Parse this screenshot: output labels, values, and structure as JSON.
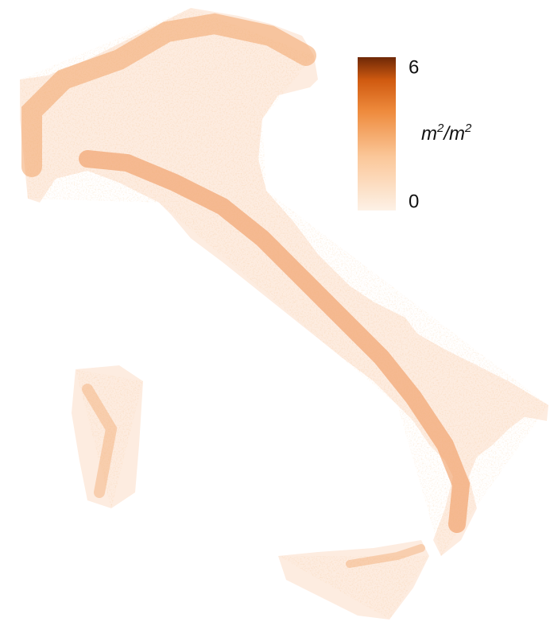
{
  "colorbar": {
    "min": 0,
    "max": 6,
    "ticks": [
      6,
      0
    ],
    "unit": [
      "m",
      "2",
      "/m",
      "2"
    ]
  }
}
